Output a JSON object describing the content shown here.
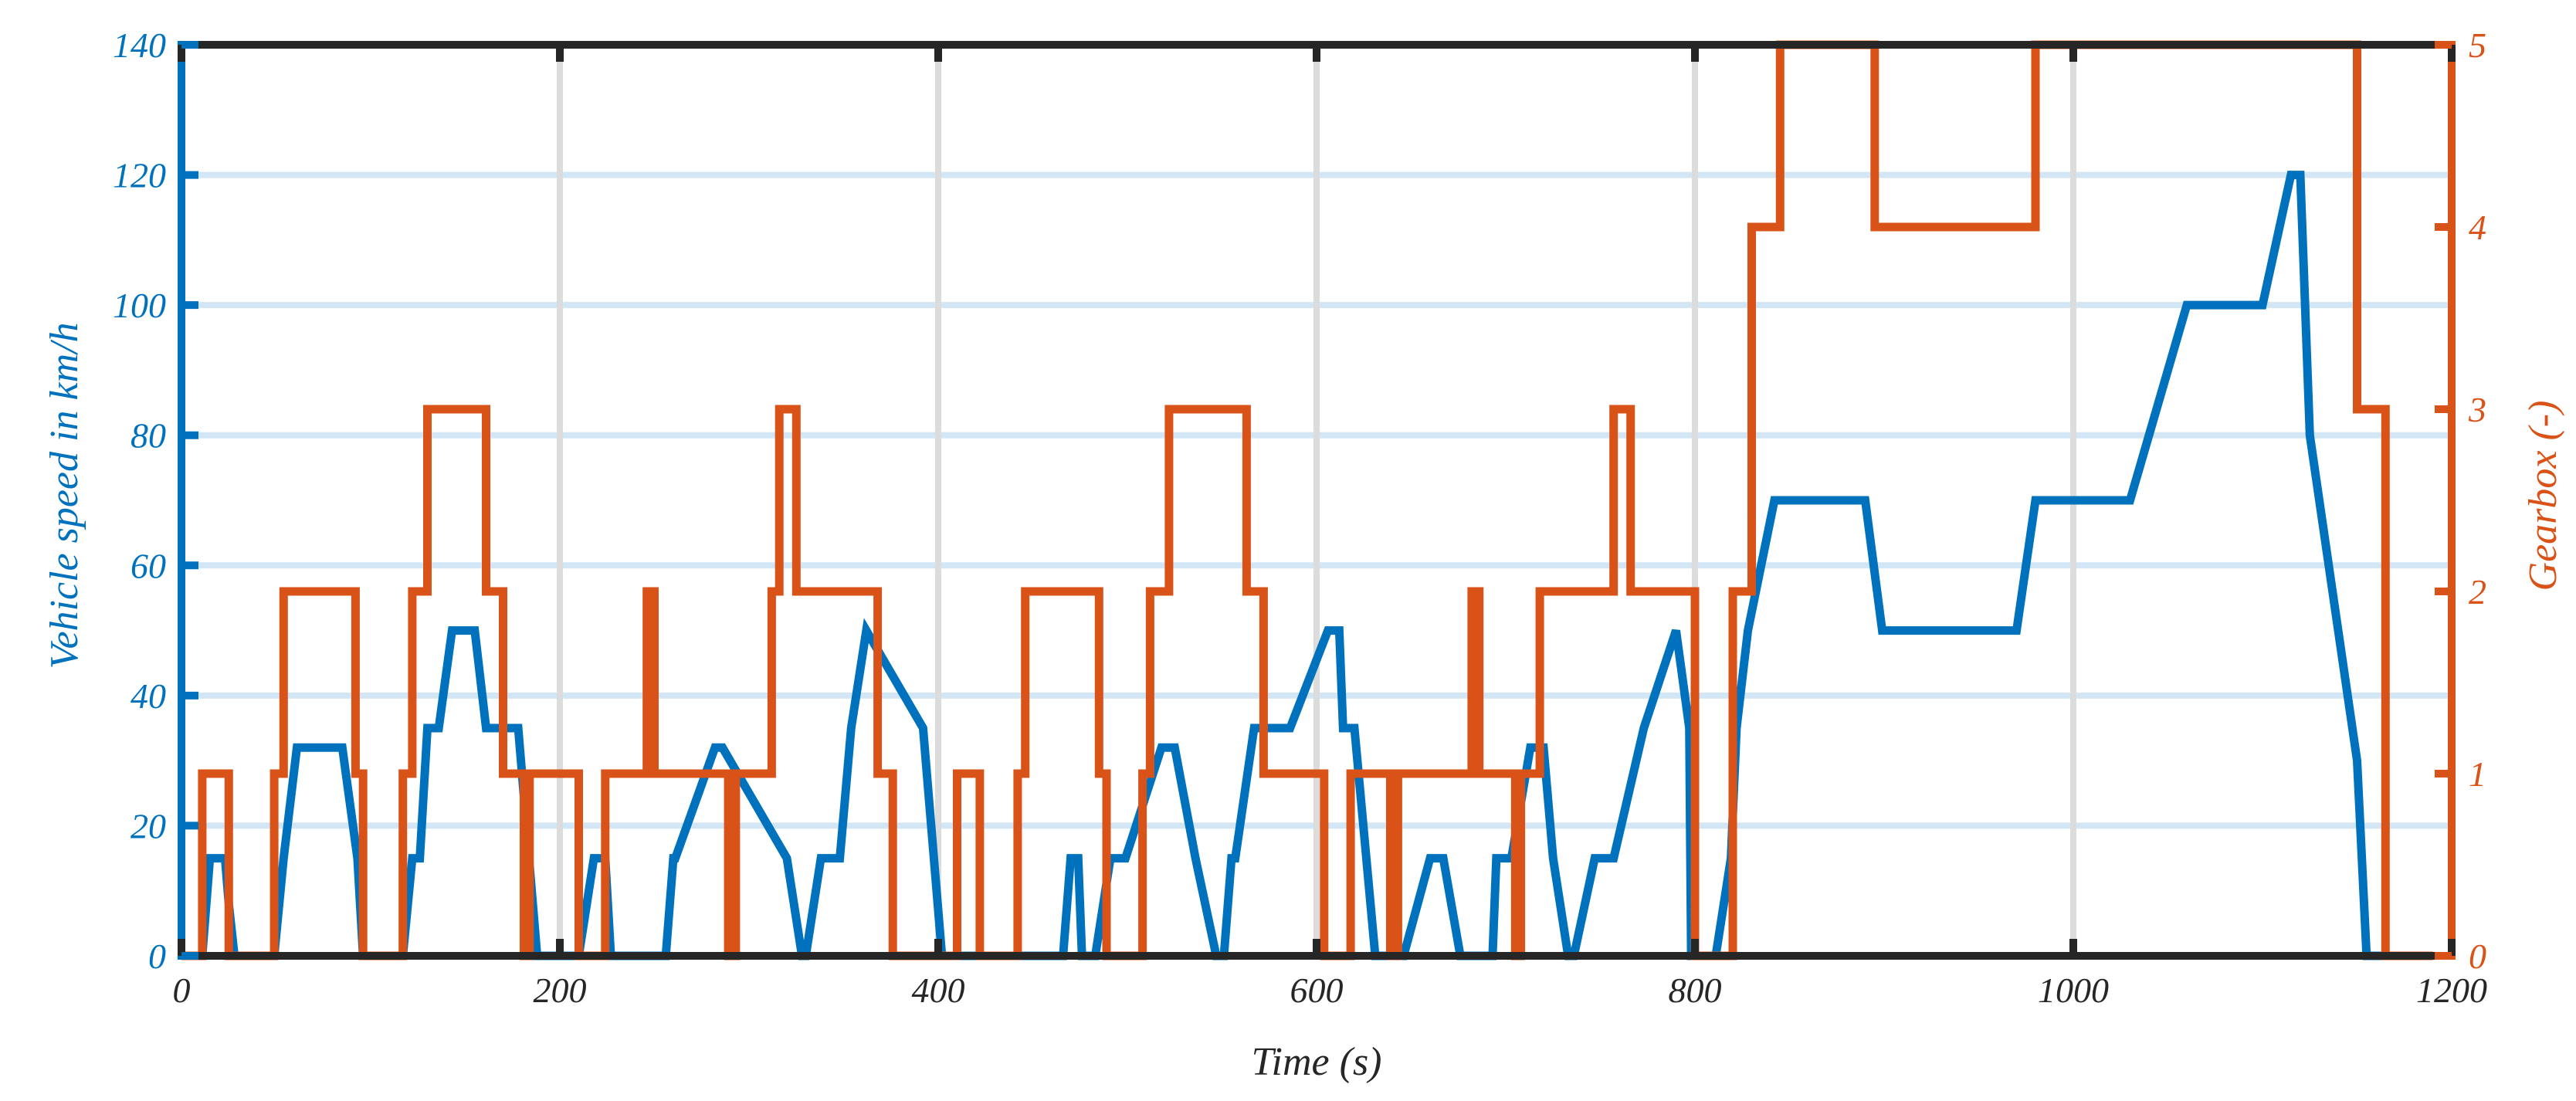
{
  "chart_data": {
    "type": "line",
    "title": "",
    "xlabel": "Time (s)",
    "ylabel_left": "Vehicle speed in km/h",
    "ylabel_right": "Gearbox (-)",
    "xlim": [
      0,
      1200
    ],
    "ylim_left": [
      0,
      140
    ],
    "ylim_right": [
      0,
      5
    ],
    "x_ticks": [
      "0",
      "200",
      "400",
      "600",
      "800",
      "1000",
      "1200"
    ],
    "y_left_ticks": [
      "0",
      "20",
      "40",
      "60",
      "80",
      "100",
      "120",
      "140"
    ],
    "y_right_ticks": [
      "0",
      "1",
      "2",
      "3",
      "4",
      "5"
    ],
    "grid": true,
    "legend": "none",
    "colors": {
      "speed": "#0072BD",
      "gear": "#D95319",
      "y_grid": "#D3E6F5",
      "x_grid": "#DCDCDC",
      "axis": "#262626"
    },
    "series": [
      {
        "axis": "left",
        "x": [
          0,
          11,
          15,
          23,
          25,
          28,
          49,
          54,
          61,
          85,
          93,
          96,
          117,
          122,
          126,
          130,
          136,
          143,
          155,
          161,
          170,
          178,
          188,
          195,
          210,
          218,
          224,
          227,
          256,
          260,
          261,
          282,
          286,
          320,
          328,
          330,
          338,
          348,
          354,
          362,
          392,
          402,
          417,
          418
        ],
        "y": [
          0,
          0,
          15,
          15,
          8,
          0,
          0,
          15,
          32,
          32,
          15,
          0,
          0,
          15,
          15,
          35,
          35,
          50,
          50,
          35,
          35,
          35,
          0,
          0,
          0,
          15,
          15,
          0,
          0,
          15,
          15,
          32,
          32,
          15,
          0,
          0,
          15,
          15,
          35,
          50,
          35,
          0,
          0,
          0
        ]
      },
      {
        "axis": "left",
        "x": [
          418,
          466,
          470,
          474,
          476,
          483,
          491,
          499,
          518,
          525,
          536,
          547,
          551,
          555,
          557,
          567,
          586,
          606,
          612,
          614,
          620,
          631,
          635,
          646,
          660,
          667,
          676,
          693,
          695,
          703,
          713,
          720,
          725,
          733,
          736,
          747,
          757,
          773,
          790,
          797,
          798,
          811,
          819,
          822,
          828,
          842,
          890,
          899,
          970,
          980,
          1030,
          1060,
          1100,
          1115,
          1120,
          1125,
          1150,
          1155,
          1158,
          1165
        ],
        "y": [
          0,
          0,
          15,
          15,
          0,
          0,
          15,
          15,
          32,
          32,
          15,
          0,
          0,
          15,
          15,
          35,
          35,
          50,
          50,
          35,
          35,
          0,
          0,
          0,
          15,
          15,
          0,
          0,
          15,
          15,
          32,
          32,
          15,
          0,
          0,
          15,
          15,
          35,
          50,
          35,
          0,
          0,
          15,
          35,
          50,
          70,
          70,
          50,
          50,
          70,
          70,
          100,
          100,
          120,
          120,
          80,
          30,
          0,
          0,
          0
        ],
        "name": ""
      },
      {
        "axis": "right",
        "x": [
          0,
          11,
          11,
          25,
          25,
          49,
          49,
          54,
          54,
          92,
          92,
          96,
          96,
          117,
          117,
          122,
          122,
          130,
          130,
          161,
          161,
          170,
          170,
          181,
          181,
          184,
          184,
          210,
          210,
          224,
          224,
          246,
          246,
          250,
          250,
          289,
          289,
          293,
          293,
          312,
          312,
          316,
          316,
          325,
          325,
          368,
          368,
          376,
          376,
          410,
          410,
          422,
          422,
          442,
          442,
          446,
          446,
          485,
          485,
          489,
          489,
          508,
          508,
          512,
          512,
          522,
          522,
          563,
          563,
          572,
          572,
          604,
          604,
          618,
          618,
          639,
          639,
          643,
          643,
          682,
          682,
          686,
          686,
          705,
          705,
          708,
          708,
          718,
          718,
          757,
          757,
          766,
          766,
          800,
          800,
          820,
          820,
          830,
          830,
          845,
          845,
          895,
          895,
          980,
          980,
          1150,
          1150,
          1165,
          1165,
          1190
        ],
        "y": [
          0,
          0,
          1,
          1,
          0,
          0,
          1,
          1,
          2,
          2,
          1,
          1,
          0,
          0,
          1,
          1,
          2,
          2,
          3,
          3,
          2,
          2,
          1,
          1,
          0,
          0,
          1,
          1,
          0,
          0,
          1,
          1,
          2,
          2,
          1,
          1,
          0,
          0,
          1,
          1,
          2,
          2,
          3,
          3,
          2,
          2,
          1,
          1,
          0,
          0,
          1,
          1,
          0,
          0,
          1,
          1,
          2,
          2,
          1,
          1,
          0,
          0,
          1,
          1,
          2,
          2,
          3,
          3,
          2,
          2,
          1,
          1,
          0,
          0,
          1,
          1,
          0,
          0,
          1,
          1,
          2,
          2,
          1,
          1,
          0,
          0,
          1,
          1,
          2,
          2,
          3,
          3,
          2,
          2,
          0,
          0,
          2,
          2,
          4,
          4,
          5,
          5,
          4,
          4,
          5,
          5,
          3,
          3,
          0,
          0
        ],
        "name": ""
      }
    ]
  }
}
